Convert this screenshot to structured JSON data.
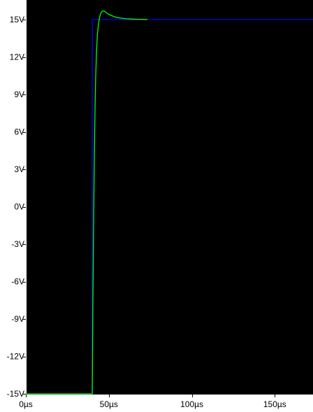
{
  "chart_data": {
    "type": "line",
    "title": "",
    "xlabel": "",
    "ylabel": "",
    "x_unit": "µs",
    "y_unit": "V",
    "xlim": [
      0,
      173
    ],
    "ylim": [
      -15,
      15
    ],
    "x_ticks": [
      0,
      50,
      100,
      150
    ],
    "x_tick_labels": [
      "0µs",
      "50µs",
      "100µs",
      "150µs"
    ],
    "y_ticks": [
      15,
      12,
      9,
      6,
      3,
      0,
      -3,
      -6,
      -9,
      -12,
      -15
    ],
    "y_tick_labels": [
      "15V",
      "12V",
      "9V",
      "6V",
      "3V",
      "0V",
      "-3V",
      "-6V",
      "-9V",
      "-12V",
      "-15V"
    ],
    "grid": false,
    "legend": "none",
    "background_color": "#000000",
    "frame_color": "#ffffff",
    "series": [
      {
        "color": "#0000ff",
        "x": [
          0,
          40,
          40,
          173
        ],
        "y": [
          -15,
          -15,
          15,
          15
        ]
      },
      {
        "color": "#00ff00",
        "x": [
          0,
          40,
          40.2,
          40.4,
          40.7,
          41,
          41.3,
          41.7,
          42.1,
          42.6,
          43.1,
          43.7,
          44.3,
          45,
          45.8,
          46.6,
          47.5,
          48.5,
          50,
          52,
          54,
          57,
          60,
          64,
          68,
          73
        ],
        "y": [
          -15,
          -15,
          -11.5,
          -7.5,
          -3,
          1,
          4.5,
          8,
          10.5,
          12.5,
          13.8,
          14.6,
          15.1,
          15.45,
          15.65,
          15.7,
          15.65,
          15.55,
          15.42,
          15.3,
          15.2,
          15.12,
          15.07,
          15.04,
          15.02,
          15.01
        ]
      }
    ]
  }
}
